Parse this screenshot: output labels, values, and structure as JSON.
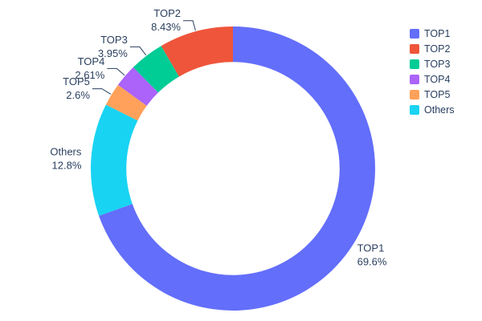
{
  "chart_data": {
    "type": "pie",
    "subtype": "donut",
    "title": "",
    "labels": [
      "TOP1",
      "TOP2",
      "TOP3",
      "TOP4",
      "TOP5",
      "Others"
    ],
    "values": [
      69.6,
      8.43,
      3.95,
      2.61,
      2.6,
      12.8
    ],
    "display_percents": [
      "69.6%",
      "8.43%",
      "3.95%",
      "2.61%",
      "2.6%",
      "12.8%"
    ],
    "colors": [
      "#636efa",
      "#ef553b",
      "#00cc96",
      "#ab63fa",
      "#ffa15a",
      "#19d3f3"
    ],
    "hole": 0.75,
    "legend": {
      "position": "right",
      "entries": [
        "TOP1",
        "TOP2",
        "TOP3",
        "TOP4",
        "TOP5",
        "Others"
      ]
    },
    "text_color": "#2a3f5f",
    "background": "#ffffff"
  }
}
